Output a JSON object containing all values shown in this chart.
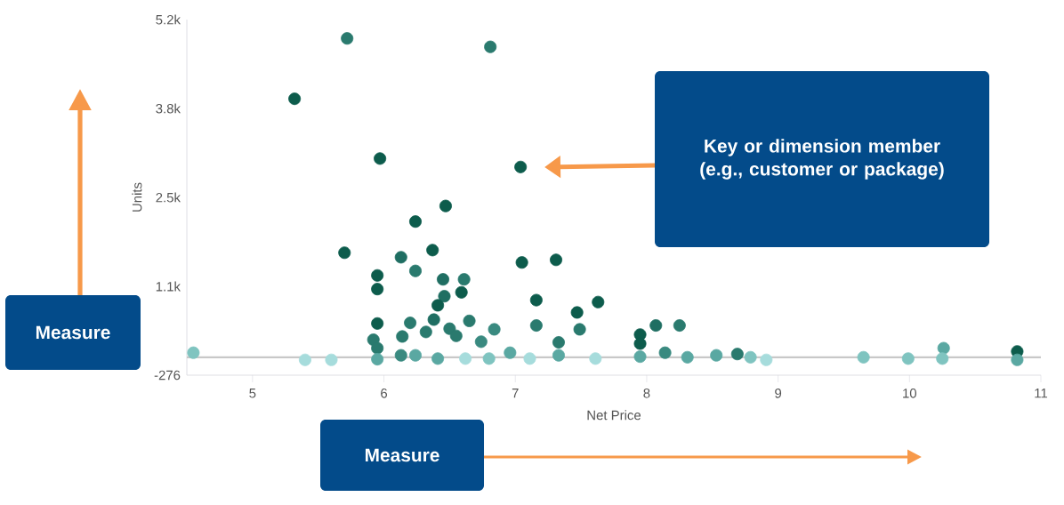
{
  "chart_data": {
    "type": "scatter",
    "xlabel": "Net Price",
    "ylabel": "Units",
    "xlim": [
      4.5,
      11
    ],
    "xticks": [
      5,
      6,
      7,
      8,
      9,
      10,
      11
    ],
    "ylim": [
      -276,
      5200
    ],
    "yticks": [
      {
        "value": -276,
        "label": "-276"
      },
      {
        "value": 1093,
        "label": "1.1k"
      },
      {
        "value": 2462,
        "label": "2.5k"
      },
      {
        "value": 3831,
        "label": "3.8k"
      },
      {
        "value": 5200,
        "label": "5.2k"
      }
    ],
    "marker": "circle",
    "grid": false,
    "ref_lines": [
      {
        "axis": "y",
        "value": 0,
        "color": "#c8c8c8"
      }
    ],
    "annotations": [
      "Key or dimension member (e.g., customer or package)",
      "Measure",
      "Measure"
    ],
    "x": [
      5.72,
      6.81,
      5.32,
      5.97,
      7.04,
      6.47,
      6.24,
      5.7,
      6.37,
      6.13,
      7.05,
      7.31,
      6.24,
      5.95,
      5.95,
      6.45,
      6.61,
      6.59,
      6.46,
      6.41,
      7.16,
      7.63,
      7.47,
      7.49,
      5.95,
      6.2,
      6.38,
      6.65,
      6.84,
      7.16,
      7.33,
      5.92,
      6.14,
      6.32,
      6.5,
      6.74,
      6.55,
      4.55,
      5.4,
      5.6,
      5.95,
      5.95,
      6.13,
      6.24,
      6.41,
      6.62,
      6.8,
      6.96,
      7.11,
      7.33,
      7.61,
      7.95,
      7.95,
      8.07,
      8.25,
      7.95,
      8.14,
      8.31,
      8.53,
      8.69,
      8.79,
      8.91,
      9.65,
      9.99,
      10.26,
      10.25,
      10.82,
      10.82
    ],
    "values": [
      4910,
      4780,
      3980,
      3060,
      2930,
      2330,
      2090,
      1610,
      1650,
      1540,
      1460,
      1500,
      1330,
      1260,
      1050,
      1200,
      1200,
      1000,
      940,
      800,
      880,
      850,
      690,
      430,
      520,
      530,
      580,
      560,
      430,
      490,
      230,
      270,
      320,
      390,
      440,
      240,
      330,
      70,
      -40,
      -40,
      140,
      -30,
      30,
      30,
      -20,
      -20,
      -20,
      70,
      -20,
      30,
      -20,
      350,
      210,
      490,
      490,
      10,
      70,
      0,
      30,
      50,
      0,
      -40,
      0,
      -20,
      140,
      -20,
      90,
      -40
    ],
    "colors": [
      "#2a7a6e",
      "#2a7a6e",
      "#0d5c4c",
      "#0d5c4c",
      "#0d5c4c",
      "#0d5c4c",
      "#0d5c4c",
      "#0d5c4c",
      "#0d5c4c",
      "#1f6e62",
      "#0d5c4c",
      "#0d5c4c",
      "#2a7a6e",
      "#0d5c4c",
      "#0d5c4c",
      "#1f6e62",
      "#2a7a6e",
      "#0d5c4c",
      "#1f6e62",
      "#0d5c4c",
      "#0d5c4c",
      "#0d5c4c",
      "#0d5c4c",
      "#2a7a6e",
      "#0d5c4c",
      "#2a7a6e",
      "#1f6e62",
      "#2a7a6e",
      "#3a8a80",
      "#2a7a6e",
      "#2a7a6e",
      "#2a7a6e",
      "#2a7a6e",
      "#2a7a6e",
      "#2a7a6e",
      "#3a8a80",
      "#2a7a6e",
      "#7fc4c0",
      "#a6dcdc",
      "#a6dcdc",
      "#2a7a6e",
      "#5aa8a2",
      "#3a8a80",
      "#5aa8a2",
      "#5aa8a2",
      "#a6dcdc",
      "#7fc4c0",
      "#5aa8a2",
      "#a6dcdc",
      "#5aa8a2",
      "#a6dcdc",
      "#0d5c4c",
      "#0d5c4c",
      "#1f6e62",
      "#2a7a6e",
      "#5aa8a2",
      "#3a8a80",
      "#5aa8a2",
      "#5aa8a2",
      "#2a7a6e",
      "#7fc4c0",
      "#a6dcdc",
      "#7fc4c0",
      "#7fc4c0",
      "#5aa8a2",
      "#7fc4c0",
      "#0d5c4c",
      "#5aa8a2"
    ]
  }
}
